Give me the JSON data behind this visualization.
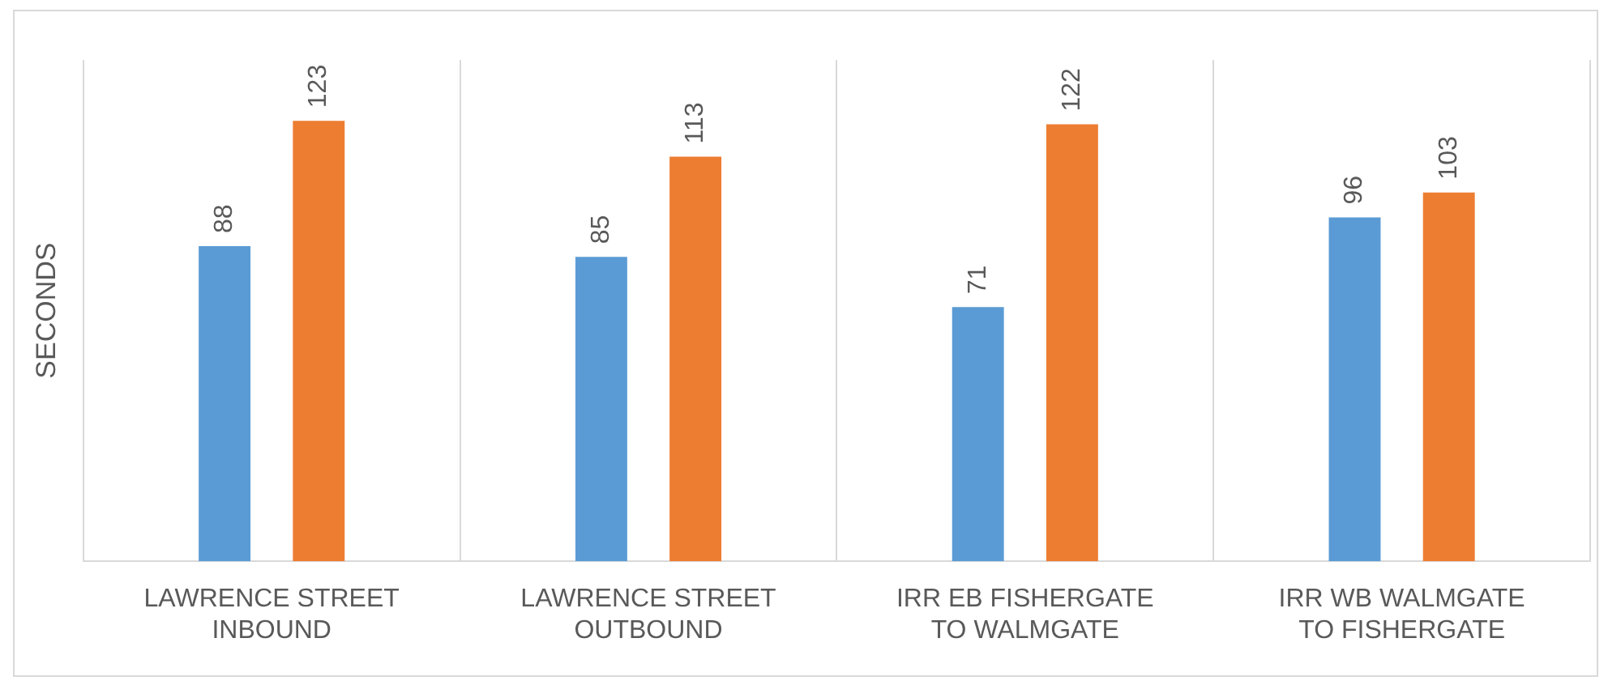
{
  "chart_data": {
    "type": "bar",
    "ylabel": "SECONDS",
    "categories": [
      "LAWRENCE STREET\nINBOUND",
      "LAWRENCE STREET\nOUTBOUND",
      "IRR EB FISHERGATE\nTO WALMGATE",
      "IRR WB WALMGATE\nTO FISHERGATE"
    ],
    "series": [
      {
        "color": "#5b9bd5",
        "values": [
          88,
          85,
          71,
          96
        ]
      },
      {
        "color": "#ed7d31",
        "values": [
          123,
          113,
          122,
          103
        ]
      }
    ],
    "ylim": [
      0,
      140
    ],
    "grid": "x",
    "legend": false,
    "data_labels": true,
    "tick_labels": "x"
  }
}
